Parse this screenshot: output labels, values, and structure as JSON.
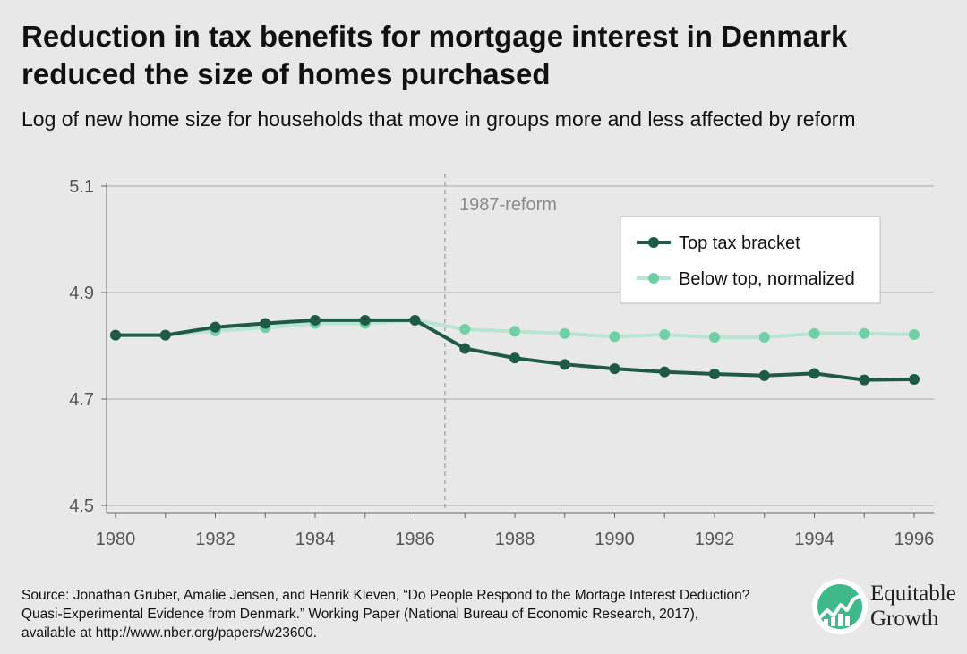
{
  "title": "Reduction in tax benefits for mortgage interest in Denmark reduced the size of homes purchased",
  "subtitle": "Log of new home size for households that move in groups more and less affected by reform",
  "source": "Source: Jonathan Gruber, Amalie Jensen, and Henrik Kleven, “Do People Respond to the Mortage Interest Deduction? Quasi-Experimental Evidence from Denmark.” Working Paper (National Bureau of Economic Research, 2017), available at http://www.nber.org/papers/w23600.",
  "logo": {
    "line1": "Equitable",
    "line2": "Growth",
    "icon": "rising-chart-icon"
  },
  "colors": {
    "top": "#1f5a47",
    "below": "#6fcfa6",
    "below_line": "#b8e4d2",
    "grid": "#a8a8a8",
    "background": "#e8e8e8"
  },
  "chart_data": {
    "type": "line",
    "title": "Reduction in tax benefits for mortgage interest in Denmark reduced the size of homes purchased",
    "subtitle": "Log of new home size for households that move in groups more and less affected by reform",
    "xlabel": "",
    "ylabel": "",
    "x": [
      1980,
      1981,
      1982,
      1983,
      1984,
      1985,
      1986,
      1987,
      1988,
      1989,
      1990,
      1991,
      1992,
      1993,
      1994,
      1995,
      1996
    ],
    "xlim": [
      1980,
      1996
    ],
    "ylim": [
      4.5,
      5.1
    ],
    "x_ticks": [
      1980,
      1982,
      1984,
      1986,
      1988,
      1990,
      1992,
      1994,
      1996
    ],
    "x_tick_labels": [
      "1980",
      "1982",
      "1984",
      "1986",
      "1988",
      "1990",
      "1992",
      "1994",
      "1996"
    ],
    "y_ticks": [
      4.5,
      4.7,
      4.9,
      5.1
    ],
    "y_tick_labels": [
      "4.5",
      "4.7",
      "4.9",
      "5.1"
    ],
    "grid": true,
    "legend_position": "top-right",
    "annotations": [
      {
        "text": "1987-reform",
        "x": 1986.6
      }
    ],
    "series": [
      {
        "name": "Top tax bracket",
        "values": [
          4.82,
          4.82,
          4.835,
          4.842,
          4.848,
          4.848,
          4.848,
          4.795,
          4.777,
          4.765,
          4.757,
          4.751,
          4.747,
          4.744,
          4.748,
          4.736,
          4.737
        ]
      },
      {
        "name": "Below top, normalized",
        "values": [
          4.82,
          4.82,
          4.828,
          4.834,
          4.842,
          4.842,
          4.848,
          4.831,
          4.827,
          4.823,
          4.817,
          4.821,
          4.816,
          4.816,
          4.823,
          4.823,
          4.821
        ]
      }
    ]
  }
}
